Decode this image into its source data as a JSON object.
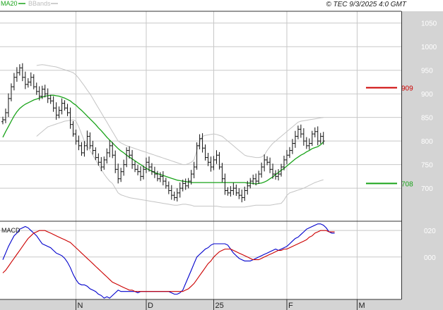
{
  "header": {
    "legend": [
      {
        "label": "MA20",
        "color": "#19a319"
      },
      {
        "label": "BBands",
        "color": "#bdbdbd"
      }
    ],
    "stamp": "© TEC 9/3/2025 4:0 GMT"
  },
  "chart_data": [
    {
      "type": "candlestick",
      "ylim": [
        630,
        1075
      ],
      "y_ticks": [
        700,
        750,
        800,
        850,
        900,
        950,
        1000,
        1050
      ],
      "x_tick_labels": [
        "N",
        "D",
        "25",
        "F",
        "M"
      ],
      "x_tick_index": [
        26,
        51,
        75,
        101,
        126
      ],
      "levels": [
        {
          "label": "909",
          "value": 913,
          "color": "#cc0000"
        },
        {
          "label": "708",
          "value": 710,
          "color": "#19a319"
        }
      ],
      "closes": [
        845,
        860,
        890,
        915,
        935,
        945,
        955,
        935,
        920,
        925,
        935,
        915,
        905,
        895,
        910,
        900,
        890,
        885,
        870,
        855,
        865,
        880,
        870,
        860,
        835,
        815,
        800,
        790,
        775,
        790,
        810,
        790,
        780,
        765,
        755,
        745,
        760,
        775,
        790,
        770,
        740,
        720,
        735,
        750,
        780,
        770,
        750,
        740,
        735,
        725,
        740,
        755,
        745,
        735,
        730,
        720,
        725,
        715,
        705,
        695,
        685,
        680,
        690,
        700,
        710,
        705,
        715,
        730,
        745,
        790,
        805,
        785,
        765,
        755,
        745,
        760,
        770,
        745,
        720,
        695,
        690,
        695,
        700,
        690,
        685,
        680,
        695,
        705,
        715,
        720,
        715,
        730,
        745,
        760,
        755,
        740,
        730,
        725,
        730,
        745,
        760,
        770,
        780,
        795,
        810,
        825,
        815,
        800,
        790,
        795,
        815,
        820,
        800,
        810,
        800
      ],
      "ma20": [
        808,
        820,
        831,
        842,
        853,
        862,
        869,
        874,
        878,
        881,
        884,
        887,
        889,
        891,
        893,
        895,
        896,
        897,
        897,
        896,
        895,
        893,
        891,
        888,
        885,
        880,
        876,
        870,
        865,
        859,
        853,
        847,
        841,
        835,
        828,
        822,
        815,
        808,
        802,
        796,
        790,
        784,
        779,
        775,
        770,
        766,
        762,
        758,
        754,
        750,
        746,
        742,
        739,
        736,
        733,
        731,
        729,
        727,
        725,
        723,
        721,
        719,
        717,
        716,
        715,
        714,
        713,
        712,
        712,
        712,
        712,
        712,
        712,
        712,
        712,
        712,
        712,
        712,
        712,
        712,
        712,
        712,
        712,
        712,
        712,
        712,
        712,
        711,
        711,
        710,
        709,
        710,
        711,
        713,
        716,
        720,
        724,
        729,
        733,
        738,
        742,
        747,
        752,
        757,
        762,
        766,
        770,
        773,
        777,
        780,
        784,
        786,
        788,
        792,
        798
      ],
      "bb_upper": [
        null,
        null,
        null,
        null,
        null,
        null,
        null,
        null,
        null,
        null,
        null,
        null,
        960,
        961,
        962,
        961,
        960,
        959,
        958,
        957,
        955,
        953,
        951,
        949,
        947,
        945,
        940,
        933,
        925,
        917,
        908,
        900,
        890,
        880,
        870,
        860,
        850,
        840,
        830,
        820,
        810,
        800,
        796,
        793,
        790,
        788,
        786,
        784,
        782,
        780,
        778,
        776,
        774,
        772,
        770,
        768,
        766,
        764,
        762,
        760,
        758,
        756,
        754,
        752,
        750,
        750,
        752,
        755,
        760,
        780,
        800,
        810,
        812,
        813,
        814,
        815,
        814,
        812,
        810,
        805,
        800,
        795,
        790,
        785,
        780,
        775,
        770,
        768,
        767,
        766,
        765,
        765,
        766,
        770,
        780,
        788,
        795,
        800,
        805,
        810,
        815,
        820,
        825,
        830,
        835,
        840,
        842,
        843,
        844,
        845,
        846,
        847,
        848,
        849,
        850
      ],
      "bb_lower": [
        null,
        null,
        null,
        null,
        null,
        null,
        null,
        null,
        null,
        null,
        null,
        null,
        810,
        815,
        820,
        825,
        830,
        832,
        834,
        836,
        838,
        840,
        842,
        843,
        844,
        845,
        842,
        830,
        815,
        800,
        790,
        780,
        770,
        760,
        750,
        740,
        730,
        722,
        715,
        710,
        700,
        690,
        686,
        684,
        682,
        680,
        679,
        678,
        677,
        676,
        675,
        674,
        673,
        672,
        671,
        670,
        669,
        668,
        667,
        666,
        665,
        664,
        664,
        665,
        666,
        666,
        665,
        664,
        662,
        662,
        662,
        662,
        662,
        662,
        662,
        662,
        662,
        661,
        660,
        660,
        660,
        660,
        660,
        660,
        660,
        660,
        660,
        661,
        662,
        663,
        664,
        664,
        664,
        664,
        664,
        664,
        665,
        666,
        667,
        668,
        675,
        685,
        690,
        692,
        694,
        696,
        698,
        700,
        703,
        706,
        709,
        712,
        714,
        716,
        718
      ]
    },
    {
      "type": "line",
      "ylabel": "MACD",
      "ylim": [
        -32,
        27
      ],
      "y_ticks": [
        0,
        20
      ],
      "y_tick_labels": [
        "000",
        "020"
      ],
      "series": [
        {
          "color": "#0000cc",
          "values": [
            -2,
            3,
            8,
            12,
            16,
            18,
            21,
            22,
            23,
            22,
            20,
            18,
            16,
            13,
            10,
            9,
            8,
            7,
            5,
            3,
            2,
            1,
            -1,
            -4,
            -8,
            -13,
            -17,
            -20,
            -21,
            -21,
            -22,
            -24,
            -25,
            -26,
            -28,
            -29,
            -31,
            -30,
            -31,
            -29,
            -27,
            -25,
            -26,
            -26,
            -26,
            -26,
            -26,
            -26,
            -27,
            -26,
            -26,
            -26,
            -26,
            -26,
            -26,
            -26,
            -26,
            -26,
            -26,
            -26,
            -27,
            -28,
            -28,
            -27,
            -25,
            -20,
            -15,
            -10,
            -5,
            0,
            2,
            4,
            6,
            7,
            9,
            10,
            10,
            10,
            10,
            10,
            9,
            6,
            3,
            1,
            -1,
            -2,
            -3,
            -3,
            -3,
            -2,
            -1,
            0,
            1,
            2,
            3,
            4,
            5,
            6,
            5,
            6,
            7,
            8,
            10,
            12,
            14,
            15,
            17,
            19,
            21,
            22,
            23,
            24,
            25,
            25,
            24,
            22,
            19,
            18,
            18
          ]
        },
        {
          "color": "#cc0000",
          "values": [
            -12,
            -10,
            -7,
            -4,
            -1,
            2,
            5,
            8,
            11,
            14,
            16,
            18,
            19,
            20,
            20,
            20,
            19,
            18,
            17,
            16,
            15,
            14,
            13,
            12,
            11,
            9,
            7,
            5,
            3,
            1,
            -1,
            -3,
            -5,
            -7,
            -9,
            -11,
            -13,
            -15,
            -17,
            -19,
            -20,
            -21,
            -22,
            -23,
            -24,
            -25,
            -25,
            -26,
            -26,
            -26,
            -26,
            -26,
            -26,
            -26,
            -26,
            -26,
            -26,
            -26,
            -26,
            -26,
            -26,
            -26,
            -26,
            -26,
            -26,
            -25,
            -24,
            -22,
            -20,
            -17,
            -14,
            -11,
            -8,
            -5,
            -3,
            0,
            2,
            4,
            5,
            6,
            6,
            6,
            5,
            4,
            3,
            2,
            1,
            0,
            -1,
            -2,
            -2,
            -2,
            -1,
            0,
            1,
            2,
            3,
            4,
            5,
            5,
            6,
            6,
            7,
            8,
            9,
            10,
            11,
            12,
            13,
            15,
            16,
            18,
            19,
            20,
            20,
            20,
            19,
            19,
            19
          ]
        }
      ]
    }
  ]
}
